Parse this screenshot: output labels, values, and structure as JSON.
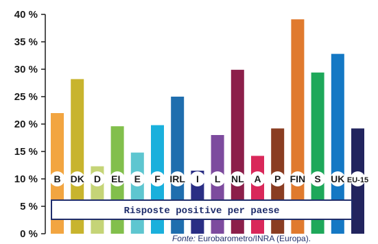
{
  "chart_data": {
    "type": "bar",
    "categories": [
      "B",
      "DK",
      "D",
      "EL",
      "E",
      "F",
      "IRL",
      "I",
      "L",
      "NL",
      "A",
      "P",
      "FIN",
      "S",
      "UK",
      "EU-15"
    ],
    "values": [
      22,
      28.2,
      12.3,
      19.6,
      14.8,
      19.8,
      25,
      11.5,
      18,
      29.9,
      14.2,
      19.2,
      39.1,
      29.4,
      32.8,
      19.2
    ],
    "colors": [
      "#f2a541",
      "#c8b42e",
      "#c5d477",
      "#82bf4c",
      "#5ec6d0",
      "#1ab0dc",
      "#1f6eae",
      "#2a2e84",
      "#7d4b9e",
      "#8c1f4a",
      "#d9285a",
      "#8a3d22",
      "#e07a2e",
      "#1ea85a",
      "#1478c4",
      "#22245e"
    ],
    "yticks": [
      "0 %",
      "5 %",
      "10 %",
      "15 %",
      "20 %",
      "25 %",
      "30 %",
      "35 %",
      "40 %"
    ],
    "ylim": [
      0,
      40
    ],
    "title": "",
    "xlabel": "",
    "ylabel": "",
    "legend_text": "Risposte positive per paese",
    "source_label": "Fonte:",
    "source_text": "Eurobarometro/INRA (Europa)."
  }
}
